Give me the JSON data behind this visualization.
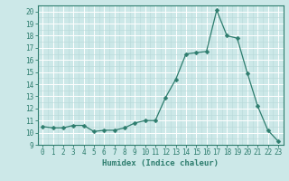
{
  "xlabel": "Humidex (Indice chaleur)",
  "x": [
    0,
    1,
    2,
    3,
    4,
    5,
    6,
    7,
    8,
    9,
    10,
    11,
    12,
    13,
    14,
    15,
    16,
    17,
    18,
    19,
    20,
    21,
    22,
    23
  ],
  "y": [
    10.5,
    10.4,
    10.4,
    10.6,
    10.6,
    10.1,
    10.2,
    10.2,
    10.4,
    10.8,
    11.0,
    11.0,
    12.9,
    14.4,
    16.5,
    16.6,
    16.7,
    20.1,
    18.0,
    17.8,
    14.9,
    12.2,
    10.2,
    9.3
  ],
  "line_color": "#2e7d6e",
  "marker": "D",
  "marker_size": 2.5,
  "bg_color": "#cce8e8",
  "grid_major_color": "#ffffff",
  "grid_minor_color": "#b8d8d8",
  "ylim": [
    9,
    20.5
  ],
  "yticks": [
    9,
    10,
    11,
    12,
    13,
    14,
    15,
    16,
    17,
    18,
    19,
    20
  ],
  "xlim": [
    -0.5,
    23.5
  ],
  "xticks": [
    0,
    1,
    2,
    3,
    4,
    5,
    6,
    7,
    8,
    9,
    10,
    11,
    12,
    13,
    14,
    15,
    16,
    17,
    18,
    19,
    20,
    21,
    22,
    23
  ],
  "axis_color": "#2e7d6e",
  "label_fontsize": 6.5,
  "tick_fontsize": 5.5
}
